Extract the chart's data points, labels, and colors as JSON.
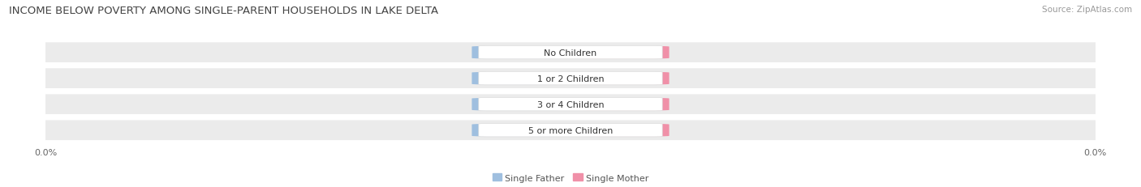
{
  "title": "INCOME BELOW POVERTY AMONG SINGLE-PARENT HOUSEHOLDS IN LAKE DELTA",
  "source": "Source: ZipAtlas.com",
  "categories": [
    "No Children",
    "1 or 2 Children",
    "3 or 4 Children",
    "5 or more Children"
  ],
  "single_father_values": [
    0.0,
    0.0,
    0.0,
    0.0
  ],
  "single_mother_values": [
    0.0,
    0.0,
    0.0,
    0.0
  ],
  "father_color": "#9fbfdf",
  "mother_color": "#f090a8",
  "row_bg_color": "#ebebeb",
  "row_bg_color_alt": "#f5f5f5",
  "label_box_color": "#ffffff",
  "title_fontsize": 9.5,
  "label_fontsize": 8,
  "value_fontsize": 7,
  "tick_fontsize": 8,
  "source_fontsize": 7.5,
  "background_color": "#ffffff",
  "legend_father": "Single Father",
  "legend_mother": "Single Mother"
}
